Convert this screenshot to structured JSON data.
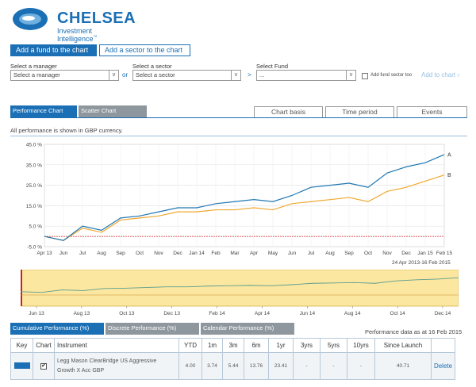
{
  "brand": {
    "name": "CHELSEA",
    "tagline": "Investment Intelligence",
    "trademark": "™",
    "color": "#1a6fb5"
  },
  "top_tabs": [
    {
      "label": "Add a fund to the chart",
      "active": true
    },
    {
      "label": "Add a sector to the chart",
      "active": false
    }
  ],
  "selectors": {
    "manager": {
      "label": "Select a manager",
      "value": "Select a manager"
    },
    "sector": {
      "label": "Select a sector",
      "value": "Select a sector"
    },
    "fund": {
      "label": "Select Fund",
      "value": "..."
    },
    "or_text": "or",
    "arrow_text": ">",
    "add_sector_label": "Add fund sector too",
    "add_link": "Add to chart ›"
  },
  "chart_tabs": [
    {
      "label": "Performance Chart",
      "active": true
    },
    {
      "label": "Scatter Chart",
      "active": false
    }
  ],
  "chart_options": [
    "Chart basis",
    "Time period",
    "Events"
  ],
  "currency_note": "All performance is shown in GBP currency.",
  "chart_data": {
    "type": "line",
    "x": [
      "Apr 13",
      "Jun",
      "Jul",
      "Aug",
      "Sep",
      "Oct",
      "Nov",
      "Dec",
      "Jan 14",
      "Feb",
      "Mar",
      "Apr",
      "May",
      "Jun",
      "Jul",
      "Aug",
      "Sep",
      "Oct",
      "Nov",
      "Dec",
      "Jan 15",
      "Feb 15"
    ],
    "x_label_all": [
      "Apr 13",
      "Jun",
      "Jul",
      "Aug",
      "Sep",
      "Oct",
      "Nov",
      "Dec",
      "Jan 14",
      "Feb",
      "Mar",
      "Apr",
      "May",
      "Jun",
      "Jul",
      "Aug",
      "Sep",
      "Oct",
      "Nov",
      "Dec",
      "Jan 15",
      "Feb 15"
    ],
    "series": [
      {
        "name": "A",
        "color": "#1f77b4",
        "values": [
          0,
          -2,
          5,
          3,
          9,
          10,
          12,
          14,
          14,
          16,
          17,
          18,
          17,
          20,
          24,
          25,
          26,
          24,
          31,
          34,
          36,
          40
        ]
      },
      {
        "name": "B",
        "color": "#f0a830",
        "values": [
          0,
          -2,
          4,
          2,
          8,
          9,
          10,
          12,
          12,
          13,
          13,
          14,
          13,
          16,
          17,
          18,
          19,
          17,
          22,
          24,
          27,
          30
        ]
      }
    ],
    "ylim": [
      -5,
      45
    ],
    "y_ticks": [
      "45.0 %",
      "35.0 %",
      "25.0 %",
      "15.0 %",
      "5.0 %",
      "-5.0 %"
    ],
    "y_tick_values": [
      45,
      35,
      25,
      15,
      5,
      -5
    ],
    "baseline": 0,
    "baseline_color": "#cc2222",
    "date_range": "24 Apr 2013-16 Feb 2015",
    "grid": true
  },
  "navigator": {
    "labels": [
      "Jun 13",
      "Aug 13",
      "Oct 13",
      "Dec 13",
      "Feb 14",
      "Apr 14",
      "Jun 14",
      "Aug 14",
      "Oct 14",
      "Dec 14"
    ],
    "bg_color": "#fbe7a0"
  },
  "bottom_tabs": [
    {
      "label": "Cumulative Performance (%)",
      "active": true
    },
    {
      "label": "Discrete Performance (%)",
      "active": false
    },
    {
      "label": "Calendar Performance (%)",
      "active": false
    }
  ],
  "performance_as_of": "Performance data as at 16 Feb 2015",
  "table": {
    "headers": [
      "Key",
      "Chart",
      "Instrument",
      "YTD",
      "1m",
      "3m",
      "6m",
      "1yr",
      "3yrs",
      "5yrs",
      "10yrs",
      "Since Launch",
      ""
    ],
    "rows": [
      {
        "key_color": "#1a6fb5",
        "checked": "✔",
        "instrument_line1": "Legg Mason ClearBridge US Aggressive",
        "instrument_line2": "Growth X Acc GBP",
        "ytd": "4.00",
        "m1": "3.74",
        "m3": "5.44",
        "m6": "13.76",
        "y1": "23.41",
        "y3": "-",
        "y5": "-",
        "y10": "-",
        "since_launch": "40.71",
        "action": "Delete"
      }
    ]
  }
}
